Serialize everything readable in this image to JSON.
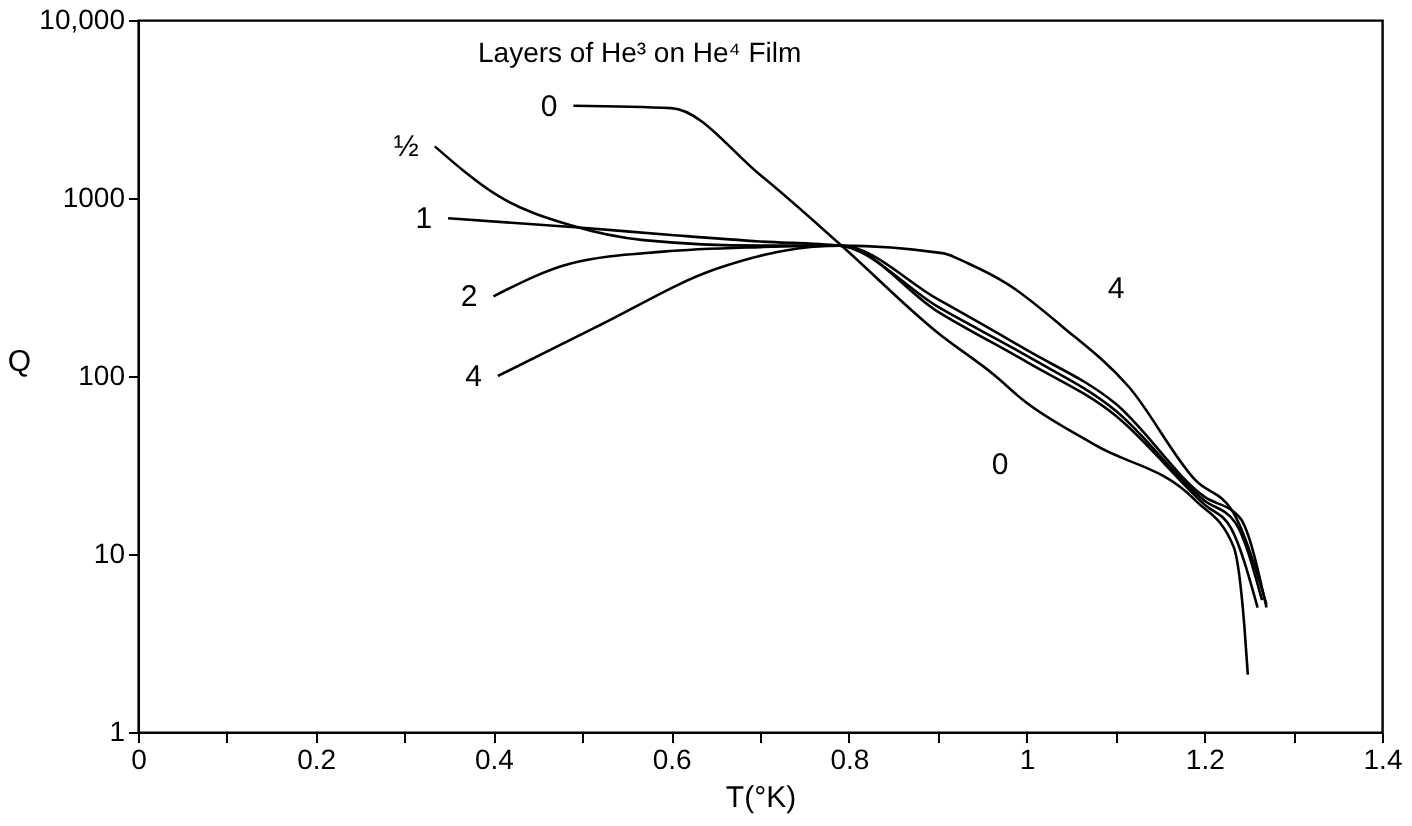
{
  "chart_data": {
    "type": "line",
    "legend_title": "Layers of He³ on He⁴ Film",
    "xlabel": "T(°K)",
    "ylabel": "Q",
    "log": "y",
    "xlim": [
      0,
      1.4
    ],
    "ylim": [
      1,
      10000
    ],
    "xticks": [
      0,
      {
        "value": 0.1,
        "label": null
      },
      0.2,
      {
        "value": 0.3,
        "label": null
      },
      0.4,
      {
        "value": 0.5,
        "label": null
      },
      0.6,
      {
        "value": 0.7,
        "label": null
      },
      0.8,
      {
        "value": 0.9,
        "label": null
      },
      1.0,
      {
        "value": 1.1,
        "label": null
      },
      1.2,
      {
        "value": 1.3,
        "label": null
      },
      1.4
    ],
    "yticks": [
      1,
      10,
      100,
      1000,
      {
        "value": 10000,
        "label": "10,000"
      }
    ],
    "grid": false,
    "series": [
      {
        "name": "0",
        "color": "#000000",
        "x": [
          0.49,
          0.6,
          0.7,
          0.79,
          0.9,
          0.965,
          0.995,
          1.077,
          1.19,
          1.233,
          1.245,
          1.249
        ],
        "values": [
          3300,
          3200,
          1350,
          550,
          175,
          100,
          74,
          41,
          20,
          11,
          4,
          2.1
        ]
      },
      {
        "name": "½",
        "color": "#000000",
        "x": [
          0.334,
          0.405,
          0.488,
          0.569,
          0.7,
          0.79,
          0.9,
          1.0,
          1.1,
          1.2,
          1.23,
          1.26
        ],
        "values": [
          1950,
          1030,
          700,
          580,
          540,
          540,
          230,
          120,
          60,
          19,
          14,
          5
        ]
      },
      {
        "name": "1",
        "color": "#000000",
        "x": [
          0.349,
          0.5,
          0.6,
          0.7,
          0.79,
          0.9,
          1.0,
          1.1,
          1.2,
          1.235,
          1.265
        ],
        "values": [
          770,
          680,
          620,
          570,
          540,
          245,
          130,
          64,
          20,
          15,
          5.5
        ]
      },
      {
        "name": "2",
        "color": "#000000",
        "x": [
          0.4,
          0.488,
          0.591,
          0.7,
          0.79,
          0.9,
          1.0,
          1.1,
          1.2,
          1.24,
          1.27
        ],
        "values": [
          280,
          430,
          500,
          530,
          540,
          270,
          140,
          70,
          21,
          16,
          5
        ]
      },
      {
        "name": "4",
        "color": "#000000",
        "x": [
          0.405,
          0.517,
          0.651,
          0.757,
          0.79,
          0.905,
          0.935,
          0.98,
          1.04,
          1.115,
          1.19,
          1.233,
          1.27
        ],
        "values": [
          100,
          190,
          400,
          530,
          540,
          490,
          427,
          325,
          190,
          87,
          26,
          17,
          5.2
        ]
      }
    ],
    "annotations": [
      "4",
      "0"
    ]
  }
}
